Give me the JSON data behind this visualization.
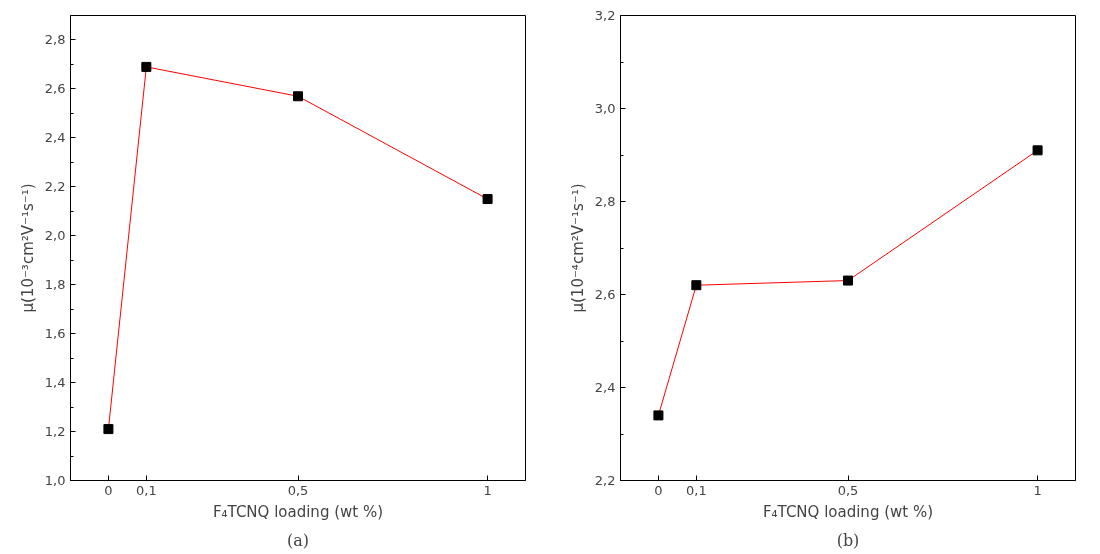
{
  "chart_data": [
    {
      "type": "line",
      "xlabel": "F₄TCNQ loading (wt %)",
      "ylabel": "μ(10⁻³cm²V⁻¹s⁻¹)",
      "annotations": [
        "(a)"
      ],
      "x": [
        0,
        0.1,
        0.5,
        1
      ],
      "series": [
        {
          "color": "#ff0000",
          "values": [
            1.21,
            2.69,
            2.57,
            2.15
          ]
        }
      ],
      "marker": "square",
      "grid": false,
      "xlim": [
        -0.1,
        1.1
      ],
      "xticks": [
        {
          "value": 0,
          "label": "0"
        },
        {
          "value": 0.1,
          "label": "0,1"
        },
        {
          "value": 0.5,
          "label": "0,5"
        },
        {
          "value": 1,
          "label": "1"
        }
      ],
      "ylim": [
        1.0,
        2.9
      ],
      "yticks": [
        {
          "value": 1.0,
          "label": "1,0"
        },
        {
          "value": 1.1,
          "label": null
        },
        {
          "value": 1.2,
          "label": "1,2"
        },
        {
          "value": 1.3,
          "label": null
        },
        {
          "value": 1.4,
          "label": "1,4"
        },
        {
          "value": 1.5,
          "label": null
        },
        {
          "value": 1.6,
          "label": "1,6"
        },
        {
          "value": 1.7,
          "label": null
        },
        {
          "value": 1.8,
          "label": "1,8"
        },
        {
          "value": 1.9,
          "label": null
        },
        {
          "value": 2.0,
          "label": "2,0"
        },
        {
          "value": 2.1,
          "label": null
        },
        {
          "value": 2.2,
          "label": "2,2"
        },
        {
          "value": 2.3,
          "label": null
        },
        {
          "value": 2.4,
          "label": "2,4"
        },
        {
          "value": 2.5,
          "label": null
        },
        {
          "value": 2.6,
          "label": "2,6"
        },
        {
          "value": 2.7,
          "label": null
        },
        {
          "value": 2.8,
          "label": "2,8"
        }
      ]
    },
    {
      "type": "line",
      "xlabel": "F₄TCNQ loading (wt %)",
      "ylabel": "μ(10⁻⁴cm²V⁻¹s⁻¹)",
      "annotations": [
        "(b)"
      ],
      "x": [
        0,
        0.1,
        0.5,
        1
      ],
      "series": [
        {
          "color": "#ff0000",
          "values": [
            2.34,
            2.62,
            2.63,
            2.91
          ]
        }
      ],
      "marker": "square",
      "grid": false,
      "xlim": [
        -0.1,
        1.1
      ],
      "xticks": [
        {
          "value": 0,
          "label": "0"
        },
        {
          "value": 0.1,
          "label": "0,1"
        },
        {
          "value": 0.5,
          "label": "0,5"
        },
        {
          "value": 1,
          "label": "1"
        }
      ],
      "ylim": [
        2.2,
        3.2
      ],
      "yticks": [
        {
          "value": 2.2,
          "label": "2,2"
        },
        {
          "value": 2.3,
          "label": null
        },
        {
          "value": 2.4,
          "label": "2,4"
        },
        {
          "value": 2.5,
          "label": null
        },
        {
          "value": 2.6,
          "label": "2,6"
        },
        {
          "value": 2.7,
          "label": null
        },
        {
          "value": 2.8,
          "label": "2,8"
        },
        {
          "value": 2.9,
          "label": null
        },
        {
          "value": 3.0,
          "label": "3,0"
        },
        {
          "value": 3.1,
          "label": null
        },
        {
          "value": 3.2,
          "label": "3,2"
        }
      ]
    }
  ]
}
